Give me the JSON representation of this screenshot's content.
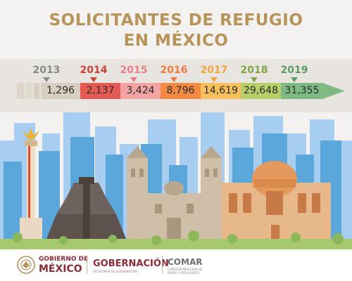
{
  "title": {
    "line1": "SOLICITANTES DE REFUGIO",
    "line2": "EN MÉXICO"
  },
  "timeline": {
    "arrow_color": "#7fba84",
    "items": [
      {
        "year": "2013",
        "value": "1,296",
        "color": "#d8cfc2",
        "marker_color": "#8a8a8a"
      },
      {
        "year": "2014",
        "value": "2,137",
        "color": "#e55a52",
        "marker_color": "#c9443b"
      },
      {
        "year": "2015",
        "value": "3,424",
        "color": "#f4a3a3",
        "marker_color": "#e97e85"
      },
      {
        "year": "2016",
        "value": "8,796",
        "color": "#f28a44",
        "marker_color": "#ef7a3a"
      },
      {
        "year": "2017",
        "value": "14,619",
        "color": "#f8c05c",
        "marker_color": "#f2a53b"
      },
      {
        "year": "2018",
        "value": "29,648",
        "color": "#b9cf6a",
        "marker_color": "#7ea547"
      },
      {
        "year": "2019",
        "value": "31,355",
        "color": "#7fba84",
        "marker_color": "#5f9a64"
      }
    ]
  },
  "footer": {
    "gobierno_line1": "GOBIERNO DE",
    "gobierno_line2": "MÉXICO",
    "gobernacion": "GOBERNACIÓN",
    "gobernacion_sub": "SECRETARÍA DE GOBERNACIÓN",
    "comar": "COMAR",
    "comar_sub": "COMISIÓN MEXICANA DE AYUDA A REFUGIADOS"
  },
  "colors": {
    "title": "#b6945a",
    "brand": "#8e2a37",
    "sky_buildings": "#5ba7dc",
    "ground": "#a7c96e"
  },
  "icons": [
    "eagle-seal-icon",
    "city-skyline-illustration"
  ]
}
